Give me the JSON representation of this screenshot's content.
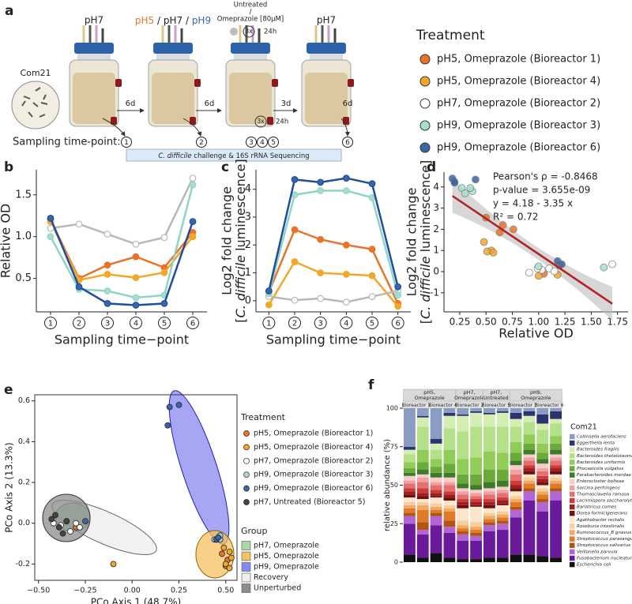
{
  "panel_a": {
    "panel": "a",
    "com_label": "Com21",
    "ph_first": "pH7",
    "ph_mixed_1": "pH5",
    "ph_mixed_2": " / pH7 / ",
    "ph_mixed_3": "pH9",
    "ph_last": "pH7",
    "treatment_top": "Untreated",
    "treatment_sep": "/",
    "treatment_bottom": "Omeprazole [80μM]",
    "repeat_top": "3x",
    "interval_top": "24h",
    "repeat_bottom": "3x",
    "interval_bottom": "24h",
    "durations": [
      "6d",
      "6d",
      "3d",
      "6d"
    ],
    "sampling_label": "Sampling time-point:",
    "sampling_points": [
      "1",
      "2",
      "3",
      "4",
      "5",
      "6"
    ],
    "box_italic": "C. difficile",
    "box_rest": " challenge & 16S rRNA Sequencing"
  },
  "treatment_legend": {
    "title": "Treatment"
  },
  "chart_data": [
    {
      "panel": "b",
      "type": "line",
      "ylabel": "Relative OD",
      "xlabel": "Sampling time−point",
      "categories": [
        "1",
        "2",
        "3",
        "4",
        "5",
        "6"
      ],
      "ylim": [
        0.1,
        1.8
      ],
      "yticks": [
        0.5,
        {
          "value": 1,
          "label": "1.0"
        },
        1.5
      ],
      "series": [
        {
          "name": "pH5, Omeprazole (Bioreactor 1)",
          "color": "#e8742a",
          "line_color": "#e8742a",
          "values": [
            1.2,
            0.5,
            0.66,
            0.76,
            0.63,
            1.05
          ]
        },
        {
          "name": "pH5, Omeprazole (Bioreactor 4)",
          "color": "#f2a72b",
          "line_color": "#f2a72b",
          "values": [
            1.18,
            0.48,
            0.55,
            0.51,
            0.57,
            1.0
          ]
        },
        {
          "name": "pH7, Omeprazole (Bioreactor 2)",
          "color": "#ffffff",
          "line_color": "#b8b8b8",
          "values": [
            1.1,
            1.15,
            1.03,
            0.91,
            0.99,
            1.7
          ]
        },
        {
          "name": "pH9, Omeprazole (Bioreactor 3)",
          "color": "#a6ddd0",
          "line_color": "#8fd5c6",
          "values": [
            1.0,
            0.37,
            0.35,
            0.27,
            0.3,
            1.62
          ]
        },
        {
          "name": "pH9, Omeprazole (Bioreactor 6)",
          "color": "#3a66a8",
          "line_color": "#1f4e9a",
          "values": [
            1.22,
            0.4,
            0.2,
            0.18,
            0.2,
            1.18
          ]
        }
      ]
    },
    {
      "panel": "c",
      "type": "line",
      "ylabel": "Log2 fold change",
      "ylabel2": {
        "pre": "[",
        "italic": "C. difficile",
        "post": " luminescence]"
      },
      "xlabel": "Sampling time−point",
      "categories": [
        "1",
        "2",
        "3",
        "4",
        "5",
        "6"
      ],
      "ylim": [
        -0.4,
        4.7
      ],
      "yticks": [
        0,
        1,
        2,
        3,
        4
      ],
      "series": [
        {
          "color": "#e8742a",
          "line_color": "#e8742a",
          "values": [
            0.3,
            2.55,
            2.2,
            2.0,
            1.85,
            -0.1
          ]
        },
        {
          "color": "#f2a72b",
          "line_color": "#f2a72b",
          "values": [
            -0.15,
            1.4,
            1.0,
            0.95,
            0.9,
            -0.2
          ]
        },
        {
          "color": "#ffffff",
          "line_color": "#b8b8b8",
          "values": [
            0.15,
            0.02,
            0.08,
            -0.05,
            0.15,
            0.35
          ]
        },
        {
          "color": "#a6ddd0",
          "line_color": "#8fd5c6",
          "values": [
            0.25,
            3.8,
            3.95,
            3.95,
            3.7,
            0.2
          ]
        },
        {
          "color": "#3a66a8",
          "line_color": "#1f4e9a",
          "values": [
            0.35,
            4.35,
            4.25,
            4.4,
            4.2,
            0.5
          ]
        }
      ]
    },
    {
      "panel": "d",
      "type": "scatter",
      "ylabel": "Log2 fold change",
      "ylabel2": {
        "pre": "[",
        "italic": "C. difficile",
        "post": " luminescence]"
      },
      "xlabel": "Relative OD",
      "xlim": [
        0.1,
        1.85
      ],
      "xticks": [
        0.25,
        {
          "value": 0.5,
          "label": "0.50"
        },
        0.75,
        {
          "value": 1,
          "label": "1.00"
        },
        1.25,
        {
          "value": 1.5,
          "label": "1.50"
        },
        1.75
      ],
      "ylim": [
        -1.9,
        4.7
      ],
      "yticks": [
        -1,
        0,
        1,
        2,
        3,
        4
      ],
      "annotations": [
        "Pearson's ρ = -0.8468",
        "p-value = 3.655e-09",
        "y = 4.18 - 3.35 x",
        "R² = 0.72"
      ],
      "fit": {
        "intercept": 4.18,
        "slope": -3.35,
        "color": "#b22222"
      },
      "series": [
        {
          "color": "#e8742a",
          "x": [
            1.2,
            0.5,
            0.66,
            0.76,
            0.63,
            1.05
          ],
          "values": [
            0.3,
            2.55,
            2.2,
            2.0,
            1.85,
            -0.1
          ]
        },
        {
          "color": "#f2a72b",
          "x": [
            1.18,
            0.48,
            0.55,
            0.51,
            0.57,
            1.0
          ],
          "values": [
            -0.15,
            1.4,
            1.0,
            0.95,
            0.9,
            -0.2
          ]
        },
        {
          "color": "#ffffff",
          "x": [
            1.1,
            1.15,
            1.03,
            0.91,
            0.99,
            1.7
          ],
          "values": [
            0.15,
            0.02,
            0.08,
            -0.05,
            0.15,
            0.35
          ]
        },
        {
          "color": "#a6ddd0",
          "x": [
            1.0,
            0.37,
            0.35,
            0.27,
            0.3,
            1.62
          ],
          "values": [
            0.25,
            3.8,
            3.95,
            3.95,
            3.7,
            0.2
          ]
        },
        {
          "color": "#3a66a8",
          "x": [
            1.22,
            0.4,
            0.2,
            0.18,
            0.2,
            1.18
          ],
          "values": [
            0.35,
            4.35,
            4.25,
            4.4,
            4.2,
            0.5
          ]
        }
      ]
    },
    {
      "panel": "e",
      "type": "scatter",
      "xlabel": "PCo Axis 1 (48.7%)",
      "ylabel": "PCo Axis 2 (13.3%)",
      "xlim": [
        -0.52,
        0.56
      ],
      "xticks": [
        {
          "value": -0.5,
          "label": "−0.50"
        },
        {
          "value": -0.25,
          "label": "−0.25"
        },
        {
          "value": 0,
          "label": "0.00"
        },
        0.25,
        {
          "value": 0.5,
          "label": "0.50"
        }
      ],
      "ylim": [
        -0.28,
        0.63
      ],
      "yticks": [
        -0.2,
        {
          "value": 0,
          "label": "0.0"
        },
        0.2,
        0.4,
        0.6
      ],
      "legend_title": "Treatment",
      "series": [
        {
          "name": "pH5, Omeprazole (Bioreactor 1)",
          "color": "#e8742a",
          "x": [
            -0.3,
            0.48,
            0.51,
            0.5
          ],
          "values": [
            -0.02,
            -0.15,
            -0.18,
            -0.21
          ]
        },
        {
          "name": "pH5, Omeprazole (Bioreactor 4)",
          "color": "#f2a72b",
          "x": [
            -0.1,
            0.49,
            0.52,
            0.53,
            0.5,
            0.52
          ],
          "values": [
            -0.2,
            -0.12,
            -0.14,
            -0.17,
            -0.2,
            -0.22
          ]
        },
        {
          "name": "pH7, Omeprazole (Bioreactor 2)",
          "color": "#ffffff",
          "x": [
            -0.42,
            -0.38,
            -0.33,
            -0.3,
            -0.28,
            0.45
          ],
          "values": [
            0.0,
            -0.01,
            -0.04,
            0.0,
            -0.02,
            -0.08
          ]
        },
        {
          "name": "pH9, Omeprazole (Bioreactor 3)",
          "color": "#a6ddd0",
          "x": [
            -0.35,
            0.44,
            0.47,
            0.47
          ],
          "values": [
            0.01,
            -0.08,
            -0.08,
            -0.06
          ]
        },
        {
          "name": "pH9, Omeprazole (Bioreactor 6)",
          "color": "#3a66a8",
          "x": [
            0.2,
            0.25,
            0.19,
            -0.25,
            0.45,
            0.46
          ],
          "values": [
            0.57,
            0.58,
            0.48,
            0.01,
            -0.08,
            -0.07
          ]
        },
        {
          "name": "pH7, Untreated (Bioreactor 5)",
          "color": "#444444",
          "x": [
            -0.43,
            -0.41,
            -0.39,
            -0.37,
            -0.35
          ],
          "values": [
            0.02,
            0.04,
            -0.02,
            -0.05,
            0.01
          ]
        }
      ],
      "groups": {
        "title": "Group",
        "items": [
          {
            "name": "pH7, Omeprazole",
            "color": "#a8d8a8"
          },
          {
            "name": "pH5, Omeprazole",
            "color": "#f5c060"
          },
          {
            "name": "pH9, Omeprazole",
            "color": "#8888f2"
          },
          {
            "name": "Recovery",
            "color": "#eeeeee"
          },
          {
            "name": "Unperturbed",
            "color": "#8c8c8c"
          }
        ]
      }
    },
    {
      "panel": "f",
      "type": "stacked_bar",
      "ylabel": "relative abundance (%)",
      "legend_title": "Com21",
      "categories": [
        null,
        null,
        null,
        null,
        null,
        null,
        null,
        null,
        null,
        null,
        null,
        null
      ],
      "ylim": [
        0,
        100
      ],
      "yticks": [
        0,
        25,
        50,
        75,
        100
      ],
      "groups": [
        {
          "label": [
            "pH5,",
            "Omeprazole"
          ],
          "subgroups": [
            "Bioreactor 1",
            "Bioreactor 4"
          ]
        },
        {
          "label": [
            "pH7,",
            "Omeprazole"
          ],
          "subgroups": [
            "Bioreactor 2"
          ]
        },
        {
          "label": [
            "pH7,",
            "Untreated"
          ],
          "subgroups": [
            "Bioreactor 5"
          ]
        },
        {
          "label": [
            "pH9,",
            "Omeprazole"
          ],
          "subgroups": [
            "Bioreactor 3",
            "Bioreactor 6"
          ]
        }
      ],
      "series": [
        {
          "name": "Collinsella aerofaciens",
          "color": "#8a9bc4",
          "values": [
            25,
            5,
            20,
            3,
            4,
            2,
            3,
            2,
            3,
            2,
            4,
            2
          ]
        },
        {
          "name": "Eggerthella lenta",
          "color": "#2c3470",
          "values": [
            2,
            1,
            3,
            2,
            1,
            1,
            1,
            1,
            4,
            3,
            6,
            5
          ]
        },
        {
          "name": "Bacteroides fragilis",
          "color": "#d4eeb2",
          "values": [
            3,
            6,
            4,
            8,
            10,
            9,
            8,
            9,
            5,
            4,
            4,
            3
          ]
        },
        {
          "name": "Bacteroides thetaiotaomicron",
          "color": "#b4e08a",
          "values": [
            5,
            15,
            6,
            14,
            18,
            20,
            16,
            17,
            10,
            8,
            9,
            8
          ]
        },
        {
          "name": "Bacteroides uniformis",
          "color": "#92cc58",
          "values": [
            4,
            8,
            5,
            9,
            10,
            11,
            12,
            11,
            7,
            6,
            6,
            5
          ]
        },
        {
          "name": "Phocaeicola vulgatus",
          "color": "#6aaa3a",
          "values": [
            3,
            5,
            4,
            6,
            6,
            7,
            8,
            7,
            5,
            4,
            4,
            4
          ]
        },
        {
          "name": "Parabacteroides merdae",
          "color": "#3d7a2a",
          "values": [
            2,
            3,
            3,
            3,
            3,
            3,
            4,
            4,
            3,
            3,
            3,
            3
          ]
        },
        {
          "name": "Enterocloster bolteae",
          "color": "#f7cccc",
          "values": [
            3,
            2,
            3,
            3,
            2,
            2,
            2,
            2,
            3,
            2,
            3,
            2
          ]
        },
        {
          "name": "Sarcina perfringens",
          "color": "#f2a0a0",
          "values": [
            2,
            3,
            2,
            2,
            2,
            2,
            2,
            2,
            3,
            2,
            2,
            2
          ]
        },
        {
          "name": "Thomasclavelia ramosa",
          "color": "#e47070",
          "values": [
            3,
            4,
            3,
            4,
            3,
            2,
            3,
            3,
            4,
            3,
            3,
            3
          ]
        },
        {
          "name": "Lacrimispora saccharolytica",
          "color": "#cc3a3a",
          "values": [
            2,
            3,
            2,
            2,
            2,
            2,
            2,
            2,
            3,
            2,
            2,
            2
          ]
        },
        {
          "name": "Bariatricus comes",
          "color": "#a01e1e",
          "values": [
            2,
            2,
            2,
            2,
            2,
            2,
            2,
            2,
            2,
            2,
            2,
            2
          ]
        },
        {
          "name": "Dorea formicigenerans",
          "color": "#6e1010",
          "values": [
            2,
            2,
            1,
            2,
            2,
            1,
            2,
            1,
            2,
            2,
            2,
            2
          ]
        },
        {
          "name": "Agathobacter rectalis",
          "color": "#fbe6cc",
          "values": [
            3,
            2,
            4,
            3,
            8,
            10,
            3,
            4,
            3,
            2,
            2,
            2
          ]
        },
        {
          "name": "Roseburia intestinalis",
          "color": "#f8cc9c",
          "values": [
            2,
            2,
            2,
            2,
            3,
            3,
            2,
            2,
            2,
            2,
            2,
            2
          ]
        },
        {
          "name": "Ruminococcus_B gnavus",
          "color": "#f0aa64",
          "values": [
            2,
            3,
            2,
            2,
            2,
            2,
            2,
            2,
            2,
            2,
            2,
            2
          ]
        },
        {
          "name": "Streptococcus parasanguinis",
          "color": "#e07a28",
          "values": [
            3,
            8,
            2,
            6,
            2,
            2,
            2,
            2,
            3,
            3,
            3,
            3
          ]
        },
        {
          "name": "Streptococcus salivarius",
          "color": "#b45410",
          "values": [
            2,
            5,
            2,
            4,
            2,
            2,
            2,
            2,
            2,
            2,
            2,
            2
          ]
        },
        {
          "name": "Veillonella parvula",
          "color": "#b266d6",
          "values": [
            5,
            3,
            6,
            4,
            4,
            3,
            4,
            4,
            5,
            6,
            6,
            6
          ]
        },
        {
          "name": "Fusobacterium nucleatum",
          "color": "#6a1a9a",
          "values": [
            20,
            15,
            18,
            16,
            12,
            12,
            17,
            18,
            24,
            35,
            29,
            37
          ]
        },
        {
          "name": "Escherichia coli",
          "color": "#111111",
          "values": [
            5,
            3,
            6,
            3,
            2,
            2,
            3,
            3,
            5,
            5,
            4,
            3
          ]
        }
      ]
    }
  ]
}
